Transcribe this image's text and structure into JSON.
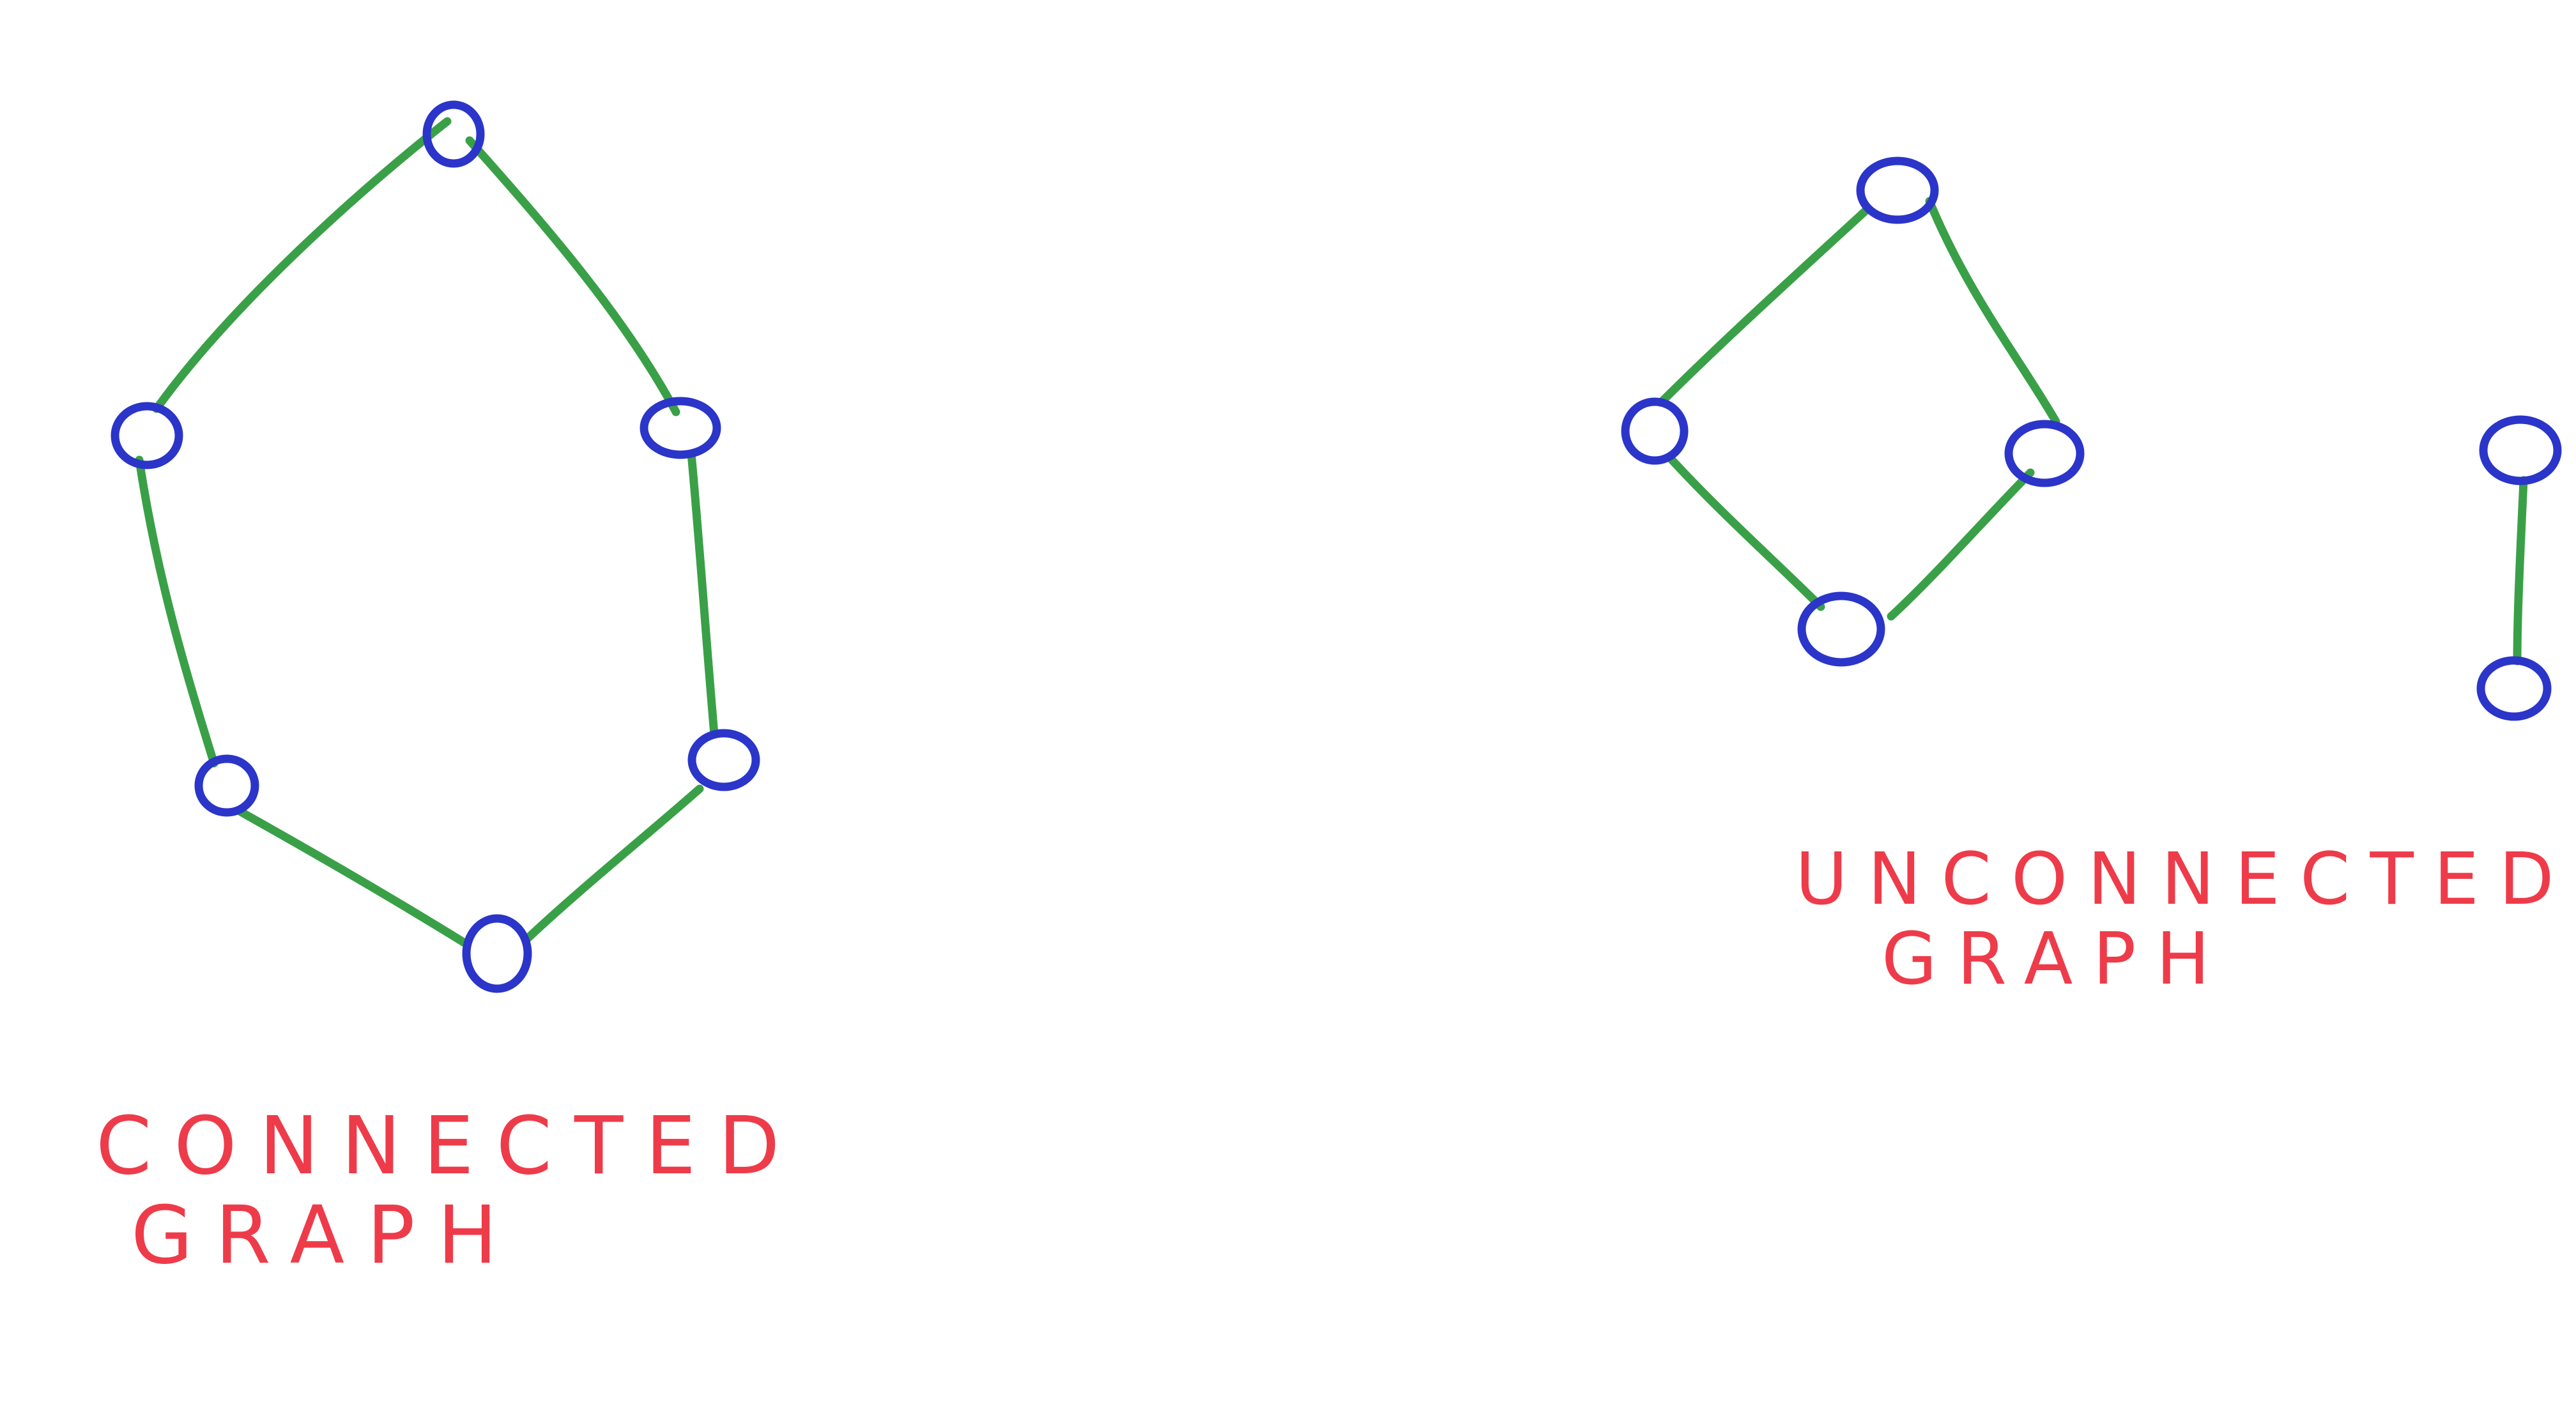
{
  "colors": {
    "node_stroke": "#2b35c9",
    "edge_stroke": "#3aa047",
    "label_color": "#ee3b4a"
  },
  "graphs": [
    {
      "id": "connected",
      "label_lines": [
        "Connected",
        "Graph"
      ],
      "node_count": 6,
      "edge_count": 6,
      "components": 1
    },
    {
      "id": "unconnected",
      "label_lines": [
        "Unconnected",
        "Graph"
      ],
      "node_count": 6,
      "edge_count": 5,
      "components": 2
    }
  ]
}
